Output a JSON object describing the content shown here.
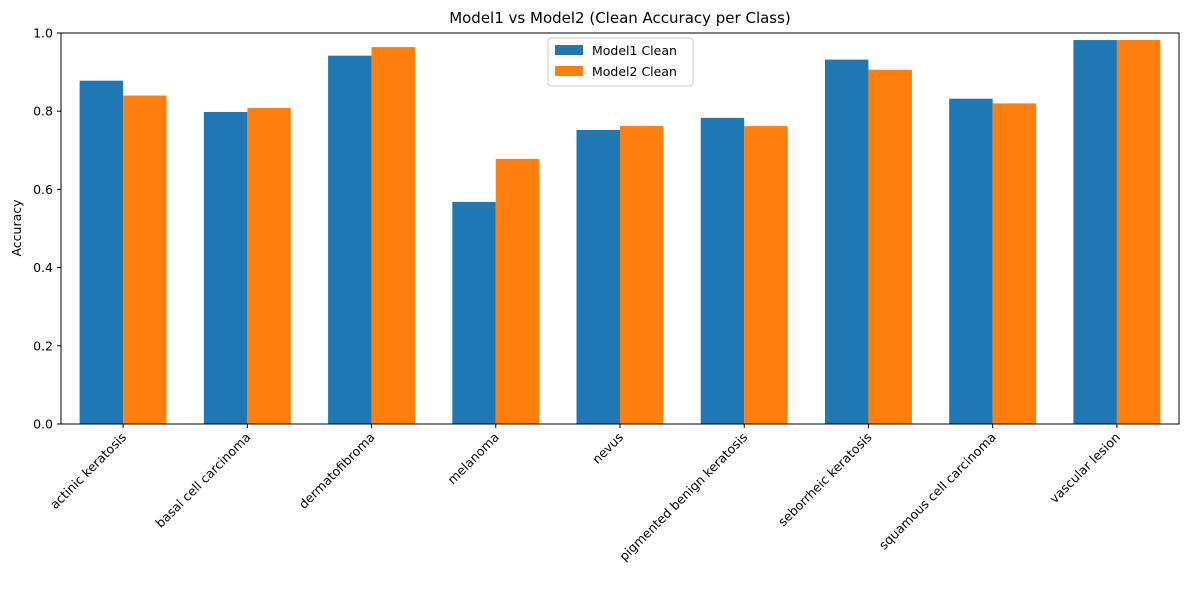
{
  "chart_data": {
    "type": "bar",
    "title": "Model1 vs Model2 (Clean Accuracy per Class)",
    "xlabel": "",
    "ylabel": "Accuracy",
    "ylim": [
      0,
      1.0
    ],
    "yticks": [
      "0.0",
      "0.2",
      "0.4",
      "0.6",
      "0.8",
      "1.0"
    ],
    "ytick_values": [
      0,
      0.2,
      0.4,
      0.6,
      0.8,
      1.0
    ],
    "categories": [
      "actinic keratosis",
      "basal cell carcinoma",
      "dermatofibroma",
      "melanoma",
      "nevus",
      "pigmented benign keratosis",
      "seborrheic keratosis",
      "squamous cell carcinoma",
      "vascular lesion"
    ],
    "series": [
      {
        "name": "Model1 Clean",
        "color": "#1f77b4",
        "values": [
          0.878,
          0.798,
          0.942,
          0.568,
          0.752,
          0.783,
          0.932,
          0.832,
          0.982
        ]
      },
      {
        "name": "Model2 Clean",
        "color": "#ff7f0e",
        "values": [
          0.84,
          0.808,
          0.964,
          0.678,
          0.762,
          0.762,
          0.906,
          0.82,
          0.982
        ]
      }
    ],
    "legend": {
      "position": "upper-center"
    },
    "grid": false
  }
}
